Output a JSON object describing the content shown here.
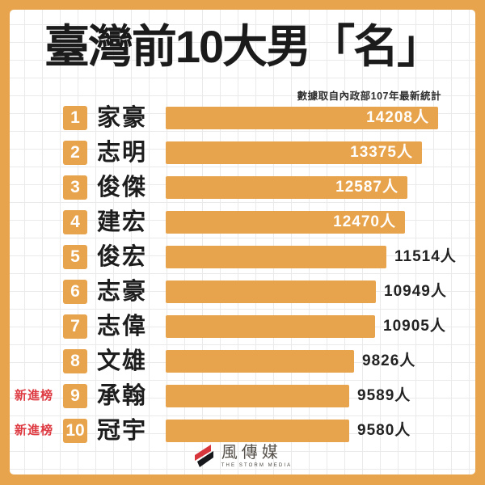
{
  "title": "臺灣前10大男「名」",
  "subtitle": "數據取自內政部107年最新統計",
  "chart_data": {
    "type": "bar",
    "orientation": "horizontal",
    "title": "臺灣前10大男「名」",
    "subtitle": "數據取自內政部107年最新統計",
    "unit_suffix": "人",
    "categories": [
      "家豪",
      "志明",
      "俊傑",
      "建宏",
      "俊宏",
      "志豪",
      "志偉",
      "文雄",
      "承翰",
      "冠宇"
    ],
    "values": [
      14208,
      13375,
      12587,
      12470,
      11514,
      10949,
      10905,
      9826,
      9589,
      9580
    ],
    "value_labels": [
      "14208人",
      "13375人",
      "12587人",
      "12470人",
      "11514人",
      "10949人",
      "10905人",
      "9826人",
      "9589人",
      "9580人"
    ],
    "ranks": [
      "1",
      "2",
      "3",
      "4",
      "5",
      "6",
      "7",
      "8",
      "9",
      "10"
    ],
    "new_entry_flags": [
      false,
      false,
      false,
      false,
      false,
      false,
      false,
      false,
      true,
      true
    ],
    "new_entry_label": "新進榜",
    "xlim": [
      0,
      14208
    ],
    "bar_color": "#E8A44C",
    "legend": "none",
    "grid": "decorative-background-grid"
  },
  "footer": {
    "logo_text": "風傳媒",
    "logo_subtext": "THE STORM MEDIA"
  },
  "colors": {
    "frame_orange": "#E8A44C",
    "bar_orange": "#E8A44C",
    "rank_square_orange": "#E8A44C",
    "new_entry_red": "#DE3A42",
    "title_black": "#1B1B1B",
    "value_dark": "#222222",
    "value_inside_white": "#FFFFFF",
    "panel_background": "#FFFFFF",
    "grid_line": "#EAEAEA",
    "logo_red": "#D7363D",
    "logo_black": "#17181C",
    "logo_text_gray": "#57514B"
  }
}
